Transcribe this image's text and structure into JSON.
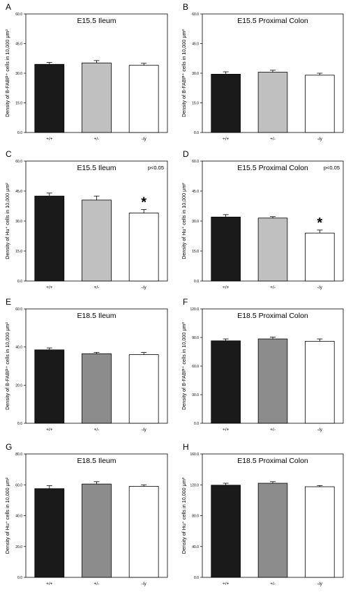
{
  "chart_data": [
    {
      "panel": "A",
      "type": "bar",
      "title": "E15.5 Ileum",
      "annotation": "",
      "ylabel": "Density of B-FABP⁺ cells in 10,000 μm²",
      "ylim": [
        0,
        60
      ],
      "yticks": [
        "0.0",
        "15.0",
        "30.0",
        "45.0",
        "60.0"
      ],
      "categories": [
        "+/+",
        "+/-",
        "-/y"
      ],
      "values": [
        34.5,
        35.2,
        34.0
      ],
      "errors": [
        1.0,
        1.2,
        1.0
      ],
      "bar_colors": [
        "#1a1a1a",
        "#c0c0c0",
        "#ffffff"
      ],
      "significant": [
        false,
        false,
        false
      ]
    },
    {
      "panel": "B",
      "type": "bar",
      "title": "E15.5 Proximal Colon",
      "annotation": "",
      "ylabel": "Density of B-FABP⁺ cells in 10,000 μm²",
      "ylim": [
        0,
        60
      ],
      "yticks": [
        "0.0",
        "15.0",
        "30.0",
        "45.0",
        "60.0"
      ],
      "categories": [
        "+/+",
        "+/-",
        "-/y"
      ],
      "values": [
        29.5,
        30.5,
        29.0
      ],
      "errors": [
        1.2,
        1.0,
        1.0
      ],
      "bar_colors": [
        "#1a1a1a",
        "#c0c0c0",
        "#ffffff"
      ],
      "significant": [
        false,
        false,
        false
      ]
    },
    {
      "panel": "C",
      "type": "bar",
      "title": "E15.5 Ileum",
      "annotation": "p<0.05",
      "ylabel": "Density of Hu⁺ cells in 10,000 μm²",
      "ylim": [
        0,
        60
      ],
      "yticks": [
        "0.0",
        "15.0",
        "30.0",
        "45.0",
        "60.0"
      ],
      "categories": [
        "+/+",
        "+/-",
        "-/y"
      ],
      "values": [
        42.5,
        40.5,
        34.0
      ],
      "errors": [
        1.5,
        2.0,
        1.8
      ],
      "bar_colors": [
        "#1a1a1a",
        "#c0c0c0",
        "#ffffff"
      ],
      "significant": [
        false,
        false,
        true
      ]
    },
    {
      "panel": "D",
      "type": "bar",
      "title": "E15.5 Proximal Colon",
      "annotation": "p<0.05",
      "ylabel": "Density of Hu⁺ cells in 10,000 μm²",
      "ylim": [
        0,
        60
      ],
      "yticks": [
        "0.0",
        "15.0",
        "30.0",
        "45.0",
        "60.0"
      ],
      "categories": [
        "+/+",
        "+/-",
        "-/y"
      ],
      "values": [
        32.0,
        31.5,
        24.0
      ],
      "errors": [
        1.2,
        0.7,
        1.5
      ],
      "bar_colors": [
        "#1a1a1a",
        "#c0c0c0",
        "#ffffff"
      ],
      "significant": [
        false,
        false,
        true
      ]
    },
    {
      "panel": "E",
      "type": "bar",
      "title": "E18.5 Ileum",
      "annotation": "",
      "ylabel": "Density of B-FABP⁺ cells in 10,000 μm²",
      "ylim": [
        0,
        60
      ],
      "yticks": [
        "0.0",
        "20.0",
        "40.0",
        "60.0"
      ],
      "categories": [
        "+/+",
        "+/-",
        "-/y"
      ],
      "values": [
        38.5,
        36.5,
        36.0
      ],
      "errors": [
        1.0,
        0.7,
        1.2
      ],
      "bar_colors": [
        "#1a1a1a",
        "#8c8c8c",
        "#ffffff"
      ],
      "significant": [
        false,
        false,
        false
      ]
    },
    {
      "panel": "F",
      "type": "bar",
      "title": "E18.5 Proximal Colon",
      "annotation": "",
      "ylabel": "Density of B-FABP⁺ cells in 10,000 μm²",
      "ylim": [
        0,
        120
      ],
      "yticks": [
        "0.0",
        "30.0",
        "60.0",
        "90.0",
        "120.0"
      ],
      "categories": [
        "+/+",
        "+/-",
        "-/y"
      ],
      "values": [
        86.5,
        88.5,
        86.0
      ],
      "errors": [
        2.0,
        2.0,
        2.5
      ],
      "bar_colors": [
        "#1a1a1a",
        "#8c8c8c",
        "#ffffff"
      ],
      "significant": [
        false,
        false,
        false
      ]
    },
    {
      "panel": "G",
      "type": "bar",
      "title": "E18.5 Ileum",
      "annotation": "",
      "ylabel": "Density of Hu⁺ cells in 10,000 μm²",
      "ylim": [
        0,
        80
      ],
      "yticks": [
        "0.0",
        "20.0",
        "40.0",
        "60.0",
        "80.0"
      ],
      "categories": [
        "+/+",
        "+/-",
        "-/y"
      ],
      "values": [
        57.5,
        60.5,
        59.0
      ],
      "errors": [
        2.0,
        1.5,
        1.0
      ],
      "bar_colors": [
        "#1a1a1a",
        "#8c8c8c",
        "#ffffff"
      ],
      "significant": [
        false,
        false,
        false
      ]
    },
    {
      "panel": "H",
      "type": "bar",
      "title": "E18.5 Proximal Colon",
      "annotation": "",
      "ylabel": "Density of Hu⁺ cells in 10,000 μm²",
      "ylim": [
        0,
        160
      ],
      "yticks": [
        "0.0",
        "40.0",
        "80.0",
        "120.0",
        "160.0"
      ],
      "categories": [
        "+/+",
        "+/-",
        "-/y"
      ],
      "values": [
        119.5,
        122.0,
        117.5
      ],
      "errors": [
        2.5,
        2.0,
        1.5
      ],
      "bar_colors": [
        "#1a1a1a",
        "#8c8c8c",
        "#ffffff"
      ],
      "significant": [
        false,
        false,
        false
      ]
    }
  ]
}
